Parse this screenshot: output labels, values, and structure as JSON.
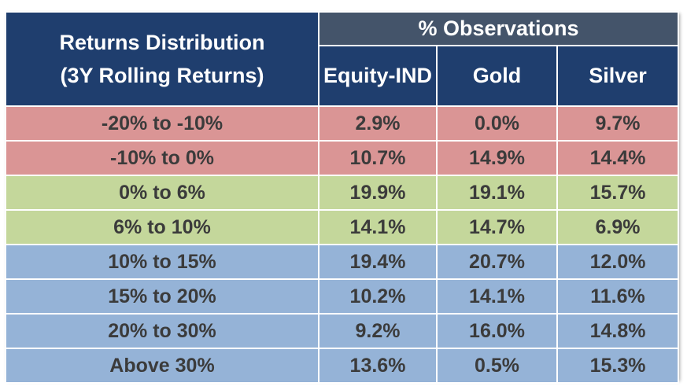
{
  "header": {
    "title_line1": "Returns Distribution",
    "title_line2": "(3Y Rolling Returns)",
    "group_label": "% Observations",
    "columns": [
      "Equity-IND",
      "Gold",
      "Silver"
    ]
  },
  "colors": {
    "header_dark": "#1f3e6e",
    "header_gray": "#44546a",
    "negative_band": "#da9595",
    "low_band": "#c4d79b",
    "high_band": "#95b3d7"
  },
  "rows": [
    {
      "range": "-20% to -10%",
      "equity": "2.9%",
      "gold": "0.0%",
      "silver": "9.7%"
    },
    {
      "range": "-10% to 0%",
      "equity": "10.7%",
      "gold": "14.9%",
      "silver": "14.4%"
    },
    {
      "range": "0% to 6%",
      "equity": "19.9%",
      "gold": "19.1%",
      "silver": "15.7%"
    },
    {
      "range": "6% to 10%",
      "equity": "14.1%",
      "gold": "14.7%",
      "silver": "6.9%"
    },
    {
      "range": "10% to 15%",
      "equity": "19.4%",
      "gold": "20.7%",
      "silver": "12.0%"
    },
    {
      "range": "15% to 20%",
      "equity": "10.2%",
      "gold": "14.1%",
      "silver": "11.6%"
    },
    {
      "range": "20% to 30%",
      "equity": "9.2%",
      "gold": "16.0%",
      "silver": "14.8%"
    },
    {
      "range": "Above 30%",
      "equity": "13.6%",
      "gold": "0.5%",
      "silver": "15.3%"
    }
  ]
}
